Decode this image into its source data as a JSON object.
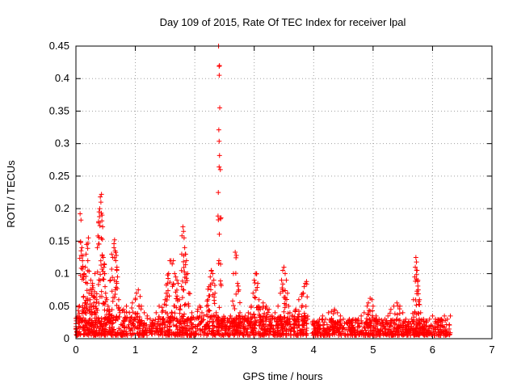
{
  "chart_data": {
    "type": "scatter",
    "title": "Day 109 of 2015, Rate Of TEC Index for receiver lpal",
    "xlabel": "GPS time / hours",
    "ylabel": "ROTI / TECUs",
    "xlim": [
      0,
      7
    ],
    "ylim": [
      0,
      0.45
    ],
    "xticks": [
      "0",
      "1",
      "2",
      "3",
      "4",
      "5",
      "6",
      "7"
    ],
    "yticks": [
      "0",
      "0.05",
      "0.1",
      "0.15",
      "0.2",
      "0.25",
      "0.3",
      "0.35",
      "0.4",
      "0.45"
    ],
    "grid": true,
    "marker": "+",
    "color": "#ff0000",
    "series": [
      {
        "name": "ROTI",
        "points": [
          [
            0.02,
            0.012
          ],
          [
            0.04,
            0.025
          ],
          [
            0.05,
            0.035
          ],
          [
            0.06,
            0.05
          ],
          [
            0.07,
            0.192
          ],
          [
            0.08,
            0.148
          ],
          [
            0.09,
            0.128
          ],
          [
            0.1,
            0.14
          ],
          [
            0.11,
            0.12
          ],
          [
            0.12,
            0.095
          ],
          [
            0.13,
            0.065
          ],
          [
            0.14,
            0.1
          ],
          [
            0.15,
            0.055
          ],
          [
            0.16,
            0.11
          ],
          [
            0.17,
            0.13
          ],
          [
            0.18,
            0.145
          ],
          [
            0.19,
            0.085
          ],
          [
            0.2,
            0.12
          ],
          [
            0.21,
            0.155
          ],
          [
            0.22,
            0.07
          ],
          [
            0.24,
            0.06
          ],
          [
            0.25,
            0.09
          ],
          [
            0.26,
            0.045
          ],
          [
            0.27,
            0.075
          ],
          [
            0.28,
            0.085
          ],
          [
            0.3,
            0.055
          ],
          [
            0.31,
            0.065
          ],
          [
            0.32,
            0.1
          ],
          [
            0.33,
            0.05
          ],
          [
            0.34,
            0.04
          ],
          [
            0.35,
            0.06
          ],
          [
            0.36,
            0.14
          ],
          [
            0.37,
            0.158
          ],
          [
            0.38,
            0.18
          ],
          [
            0.39,
            0.195
          ],
          [
            0.4,
            0.2
          ],
          [
            0.41,
            0.218
          ],
          [
            0.42,
            0.21
          ],
          [
            0.43,
            0.222
          ],
          [
            0.44,
            0.19
          ],
          [
            0.45,
            0.172
          ],
          [
            0.46,
            0.125
          ],
          [
            0.47,
            0.11
          ],
          [
            0.48,
            0.1
          ],
          [
            0.49,
            0.08
          ],
          [
            0.5,
            0.07
          ],
          [
            0.52,
            0.06
          ],
          [
            0.54,
            0.05
          ],
          [
            0.56,
            0.045
          ],
          [
            0.58,
            0.09
          ],
          [
            0.6,
            0.13
          ],
          [
            0.62,
            0.125
          ],
          [
            0.64,
            0.14
          ],
          [
            0.65,
            0.152
          ],
          [
            0.66,
            0.135
          ],
          [
            0.67,
            0.12
          ],
          [
            0.68,
            0.128
          ],
          [
            0.69,
            0.11
          ],
          [
            0.7,
            0.095
          ],
          [
            0.72,
            0.06
          ],
          [
            0.74,
            0.04
          ],
          [
            0.8,
            0.045
          ],
          [
            0.85,
            0.05
          ],
          [
            0.9,
            0.04
          ],
          [
            0.95,
            0.055
          ],
          [
            1.0,
            0.06
          ],
          [
            1.02,
            0.07
          ],
          [
            1.05,
            0.075
          ],
          [
            1.08,
            0.065
          ],
          [
            1.1,
            0.05
          ],
          [
            1.15,
            0.04
          ],
          [
            1.2,
            0.035
          ],
          [
            1.25,
            0.03
          ],
          [
            1.3,
            0.028
          ],
          [
            1.35,
            0.04
          ],
          [
            1.4,
            0.05
          ],
          [
            1.45,
            0.048
          ],
          [
            1.5,
            0.06
          ],
          [
            1.52,
            0.07
          ],
          [
            1.54,
            0.085
          ],
          [
            1.56,
            0.1
          ],
          [
            1.58,
            0.12
          ],
          [
            1.6,
            0.12
          ],
          [
            1.62,
            0.115
          ],
          [
            1.64,
            0.12
          ],
          [
            1.66,
            0.1
          ],
          [
            1.68,
            0.095
          ],
          [
            1.7,
            0.09
          ],
          [
            1.72,
            0.085
          ],
          [
            1.74,
            0.06
          ],
          [
            1.76,
            0.05
          ],
          [
            1.78,
            0.13
          ],
          [
            1.8,
            0.172
          ],
          [
            1.81,
            0.165
          ],
          [
            1.82,
            0.155
          ],
          [
            1.83,
            0.14
          ],
          [
            1.84,
            0.13
          ],
          [
            1.86,
            0.12
          ],
          [
            1.88,
            0.1
          ],
          [
            1.9,
            0.07
          ],
          [
            1.95,
            0.04
          ],
          [
            2.0,
            0.03
          ],
          [
            2.05,
            0.045
          ],
          [
            2.08,
            0.05
          ],
          [
            2.1,
            0.048
          ],
          [
            2.12,
            0.04
          ],
          [
            2.15,
            0.035
          ],
          [
            2.2,
            0.05
          ],
          [
            2.22,
            0.06
          ],
          [
            2.24,
            0.08
          ],
          [
            2.26,
            0.095
          ],
          [
            2.28,
            0.105
          ],
          [
            2.3,
            0.1
          ],
          [
            2.32,
            0.09
          ],
          [
            2.34,
            0.07
          ],
          [
            2.36,
            0.04
          ],
          [
            2.38,
            0.03
          ],
          [
            2.4,
            0.45
          ],
          [
            2.41,
            0.419
          ],
          [
            2.415,
            0.42
          ],
          [
            2.42,
            0.355
          ],
          [
            2.43,
            0.26
          ],
          [
            2.44,
            0.186
          ],
          [
            2.46,
            0.03
          ],
          [
            2.5,
            0.025
          ],
          [
            2.55,
            0.03
          ],
          [
            2.6,
            0.035
          ],
          [
            2.65,
            0.1
          ],
          [
            2.68,
            0.133
          ],
          [
            2.7,
            0.128
          ],
          [
            2.72,
            0.085
          ],
          [
            2.74,
            0.075
          ],
          [
            2.76,
            0.04
          ],
          [
            2.8,
            0.03
          ],
          [
            2.85,
            0.035
          ],
          [
            2.9,
            0.04
          ],
          [
            2.95,
            0.05
          ],
          [
            2.98,
            0.07
          ],
          [
            3.0,
            0.09
          ],
          [
            3.02,
            0.1
          ],
          [
            3.04,
            0.1
          ],
          [
            3.06,
            0.085
          ],
          [
            3.08,
            0.06
          ],
          [
            3.1,
            0.045
          ],
          [
            3.15,
            0.055
          ],
          [
            3.2,
            0.05
          ],
          [
            3.25,
            0.045
          ],
          [
            3.3,
            0.035
          ],
          [
            3.35,
            0.04
          ],
          [
            3.4,
            0.05
          ],
          [
            3.44,
            0.07
          ],
          [
            3.46,
            0.09
          ],
          [
            3.48,
            0.105
          ],
          [
            3.5,
            0.11
          ],
          [
            3.52,
            0.1
          ],
          [
            3.54,
            0.09
          ],
          [
            3.56,
            0.07
          ],
          [
            3.58,
            0.05
          ],
          [
            3.6,
            0.04
          ],
          [
            3.65,
            0.035
          ],
          [
            3.7,
            0.045
          ],
          [
            3.75,
            0.06
          ],
          [
            3.8,
            0.065
          ],
          [
            3.82,
            0.07
          ],
          [
            3.84,
            0.08
          ],
          [
            3.86,
            0.085
          ],
          [
            3.88,
            0.088
          ],
          [
            3.9,
            0.03
          ],
          [
            4.0,
            0.02
          ],
          [
            4.05,
            0.025
          ],
          [
            4.1,
            0.03
          ],
          [
            4.15,
            0.035
          ],
          [
            4.2,
            0.03
          ],
          [
            4.25,
            0.04
          ],
          [
            4.3,
            0.042
          ],
          [
            4.35,
            0.045
          ],
          [
            4.4,
            0.04
          ],
          [
            4.45,
            0.035
          ],
          [
            4.5,
            0.03
          ],
          [
            4.55,
            0.025
          ],
          [
            4.6,
            0.03
          ],
          [
            4.65,
            0.028
          ],
          [
            4.7,
            0.025
          ],
          [
            4.75,
            0.03
          ],
          [
            4.8,
            0.035
          ],
          [
            4.85,
            0.04
          ],
          [
            4.9,
            0.05
          ],
          [
            4.92,
            0.055
          ],
          [
            4.95,
            0.062
          ],
          [
            4.98,
            0.06
          ],
          [
            5.0,
            0.05
          ],
          [
            5.05,
            0.035
          ],
          [
            5.1,
            0.03
          ],
          [
            5.15,
            0.025
          ],
          [
            5.2,
            0.03
          ],
          [
            5.25,
            0.035
          ],
          [
            5.3,
            0.045
          ],
          [
            5.35,
            0.05
          ],
          [
            5.4,
            0.055
          ],
          [
            5.45,
            0.05
          ],
          [
            5.5,
            0.04
          ],
          [
            5.55,
            0.03
          ],
          [
            5.6,
            0.025
          ],
          [
            5.65,
            0.03
          ],
          [
            5.68,
            0.06
          ],
          [
            5.7,
            0.095
          ],
          [
            5.71,
            0.11
          ],
          [
            5.72,
            0.125
          ],
          [
            5.73,
            0.118
          ],
          [
            5.74,
            0.105
          ],
          [
            5.75,
            0.088
          ],
          [
            5.76,
            0.075
          ],
          [
            5.78,
            0.06
          ],
          [
            5.8,
            0.04
          ],
          [
            5.85,
            0.03
          ],
          [
            5.9,
            0.025
          ],
          [
            5.95,
            0.03
          ],
          [
            6.0,
            0.035
          ],
          [
            6.05,
            0.03
          ],
          [
            6.1,
            0.025
          ],
          [
            6.15,
            0.03
          ],
          [
            6.2,
            0.035
          ],
          [
            6.25,
            0.03
          ],
          [
            6.3,
            0.035
          ]
        ],
        "baseline_bands": [
          {
            "x_from": 0.0,
            "x_to": 3.9,
            "y_from": 0.005,
            "y_to": 0.035
          },
          {
            "x_from": 3.97,
            "x_to": 6.3,
            "y_from": 0.005,
            "y_to": 0.03
          }
        ]
      }
    ]
  }
}
